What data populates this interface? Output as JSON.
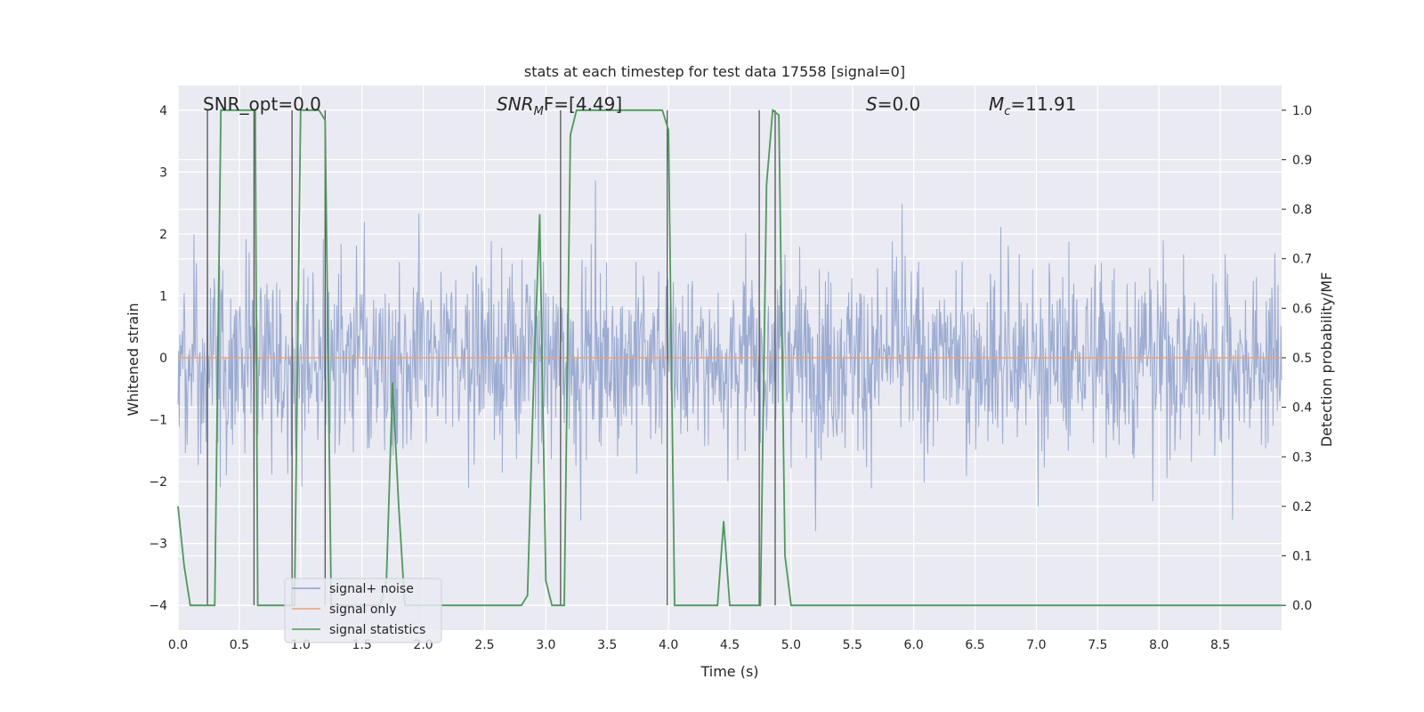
{
  "chart_data": {
    "type": "line",
    "title": "stats at each timestep for test data 17558 [signal=0]",
    "xlabel": "Time (s)",
    "ylabel": "Whitened strain",
    "ylabel_right": "Detection probability/MF",
    "xlim": [
      0.0,
      9.0
    ],
    "ylim_left": [
      -4.4,
      4.4
    ],
    "ylim_right": [
      -0.05,
      1.05
    ],
    "x_ticks": [
      "0.0",
      "0.5",
      "1.0",
      "1.5",
      "2.0",
      "2.5",
      "3.0",
      "3.5",
      "4.0",
      "4.5",
      "5.0",
      "5.5",
      "6.0",
      "6.5",
      "7.0",
      "7.5",
      "8.0",
      "8.5"
    ],
    "y_ticks_left": [
      "4",
      "3",
      "2",
      "1",
      "0",
      "−1",
      "−2",
      "−3",
      "−4"
    ],
    "y_ticks_right": [
      "1.0",
      "0.9",
      "0.8",
      "0.7",
      "0.6",
      "0.5",
      "0.4",
      "0.3",
      "0.2",
      "0.1",
      "0.0"
    ],
    "grid": true,
    "legend_position": "lower-left",
    "annotations": {
      "snr_opt": "SNR_opt=0.0",
      "snr_mf_prefix": "SNR",
      "snr_mf_sub": "M",
      "snr_mf_suffix": "F=[4.49]",
      "s_label": "S",
      "s_value": "=0.0",
      "mc_label": "M",
      "mc_sub": "c",
      "mc_value": "=11.91"
    },
    "series": [
      {
        "name": "signal+ noise",
        "color": "#8da0cb",
        "axis": "left",
        "description_values": "dense noise around 0, envelope roughly ±3.5"
      },
      {
        "name": "signal only",
        "color": "#e8a27c",
        "axis": "left",
        "values_constant": 0
      },
      {
        "name": "signal statistics",
        "color": "#4c9a5a",
        "axis": "right",
        "x": [
          0.0,
          0.05,
          0.1,
          0.15,
          0.2,
          0.25,
          0.3,
          0.35,
          0.4,
          0.45,
          0.5,
          0.55,
          0.6,
          0.63,
          0.65,
          0.7,
          0.75,
          0.8,
          0.85,
          0.9,
          0.95,
          1.0,
          1.05,
          1.1,
          1.15,
          1.2,
          1.25,
          1.3,
          1.4,
          1.5,
          1.6,
          1.65,
          1.7,
          1.75,
          1.8,
          1.85,
          1.9,
          1.95,
          2.0,
          2.1,
          2.2,
          2.3,
          2.4,
          2.5,
          2.6,
          2.7,
          2.8,
          2.85,
          2.9,
          2.95,
          3.0,
          3.05,
          3.1,
          3.15,
          3.2,
          3.25,
          3.3,
          3.35,
          3.5,
          3.7,
          3.9,
          3.95,
          4.0,
          4.05,
          4.1,
          4.2,
          4.3,
          4.35,
          4.4,
          4.45,
          4.5,
          4.55,
          4.6,
          4.65,
          4.7,
          4.75,
          4.8,
          4.85,
          4.9,
          4.95,
          5.0,
          5.2,
          5.5,
          6.0,
          6.5,
          7.0,
          7.5,
          8.0,
          8.5,
          9.0
        ],
        "values": [
          0.2,
          0.08,
          0.0,
          0.0,
          0.0,
          0.0,
          0.0,
          1.0,
          1.0,
          1.0,
          1.0,
          1.0,
          1.0,
          1.0,
          0.0,
          0.0,
          0.0,
          0.0,
          0.0,
          0.0,
          0.0,
          1.0,
          1.0,
          1.0,
          1.0,
          0.98,
          0.0,
          0.0,
          0.0,
          0.0,
          0.0,
          0.0,
          0.05,
          0.45,
          0.2,
          0.0,
          0.0,
          0.0,
          0.0,
          0.0,
          0.0,
          0.0,
          0.0,
          0.0,
          0.0,
          0.0,
          0.0,
          0.02,
          0.45,
          0.79,
          0.05,
          0.0,
          0.0,
          0.0,
          0.95,
          1.0,
          1.0,
          1.0,
          1.0,
          1.0,
          1.0,
          1.0,
          0.96,
          0.0,
          0.0,
          0.0,
          0.0,
          0.0,
          0.0,
          0.17,
          0.0,
          0.0,
          0.0,
          0.0,
          0.0,
          0.0,
          0.85,
          1.0,
          0.99,
          0.1,
          0.0,
          0.0,
          0.0,
          0.0,
          0.0,
          0.0,
          0.0,
          0.0,
          0.0,
          0.0
        ]
      }
    ],
    "vertical_markers_x": [
      0.24,
      0.62,
      0.93,
      1.2,
      3.12,
      3.99,
      4.74,
      4.87
    ]
  }
}
